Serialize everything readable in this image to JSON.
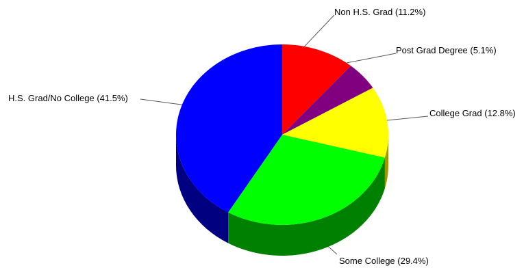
{
  "chart_data": {
    "type": "pie",
    "title": "",
    "slices": [
      {
        "label": "Non H.S. Grad (11.2%)",
        "value": 11.2,
        "color": "#ff0000",
        "dark": "#8b0000"
      },
      {
        "label": "Post Grad Degree (5.1%)",
        "value": 5.1,
        "color": "#800080",
        "dark": "#400040"
      },
      {
        "label": "College Grad (12.8%)",
        "value": 12.8,
        "color": "#ffff00",
        "dark": "#9a9a00"
      },
      {
        "label": "Some College (29.4%)",
        "value": 29.4,
        "color": "#00ff00",
        "dark": "#008000"
      },
      {
        "label": "H.S. Grad/No College (41.5%)",
        "value": 41.5,
        "color": "#0000ff",
        "dark": "#000080"
      }
    ]
  }
}
